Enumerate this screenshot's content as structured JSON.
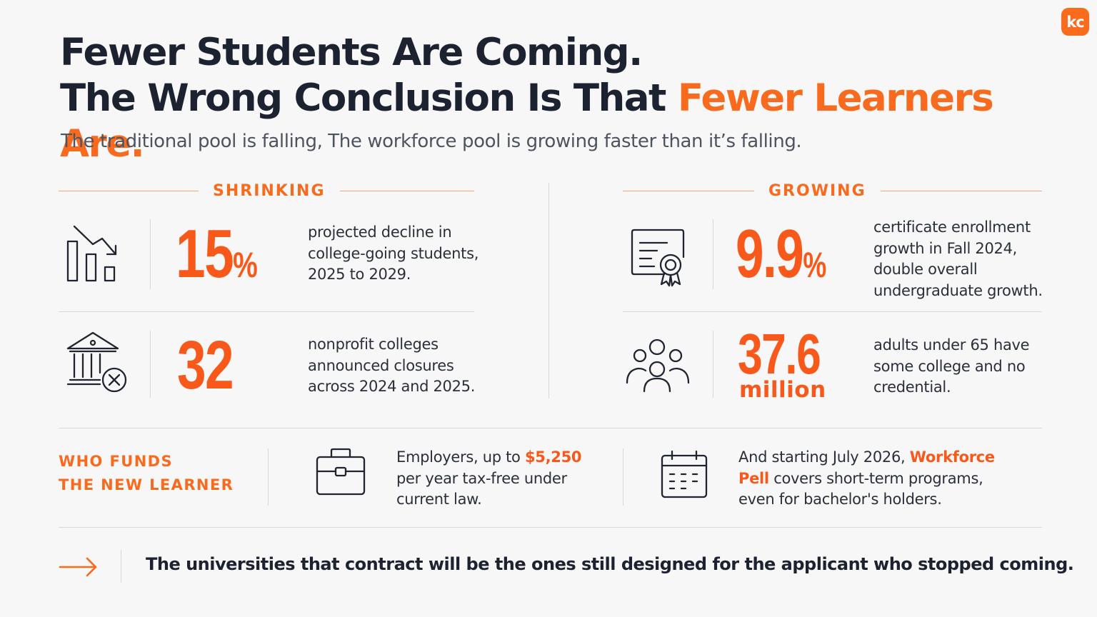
{
  "brand": {
    "logo_text": "kc",
    "accent_color": "#f86a1d"
  },
  "header": {
    "title_line1": "Fewer Students Are Coming.",
    "title_line2_prefix": "The Wrong Conclusion Is That ",
    "title_line2_accent": "Fewer Learners Are.",
    "subtitle": "The traditional pool is falling, The workforce pool is growing faster than it’s falling."
  },
  "shrinking": {
    "label": "SHRINKING",
    "items": [
      {
        "icon": "declining-bar-chart-icon",
        "value": "15",
        "unit": "%",
        "text": "projected decline in college-going students, 2025 to 2029."
      },
      {
        "icon": "college-closure-icon",
        "value": "32",
        "unit": "",
        "text": "nonprofit colleges announced closures across 2024 and 2025."
      }
    ]
  },
  "growing": {
    "label": "GROWING",
    "items": [
      {
        "icon": "certificate-icon",
        "value": "9.9",
        "unit": "%",
        "text": "certificate enrollment growth in Fall 2024, double overall undergraduate growth."
      },
      {
        "icon": "people-group-icon",
        "value": "37.6",
        "unit": "million",
        "text": "adults under 65 have some college and no credential."
      }
    ]
  },
  "funding": {
    "label_line1": "WHO FUNDS",
    "label_line2": "THE NEW LEARNER",
    "employers": {
      "icon": "briefcase-icon",
      "text_before": "Employers, up to ",
      "highlight": "$5,250",
      "text_after": " per year tax-free under current law."
    },
    "pell": {
      "icon": "calendar-icon",
      "text_before": "And starting July 2026, ",
      "highlight": "Workforce Pell",
      "text_after": " covers short-term programs, even for bachelor's holders."
    }
  },
  "conclusion": {
    "icon": "arrow-right-icon",
    "text": "The universities that contract will be the ones still designed for the applicant who stopped coming."
  }
}
